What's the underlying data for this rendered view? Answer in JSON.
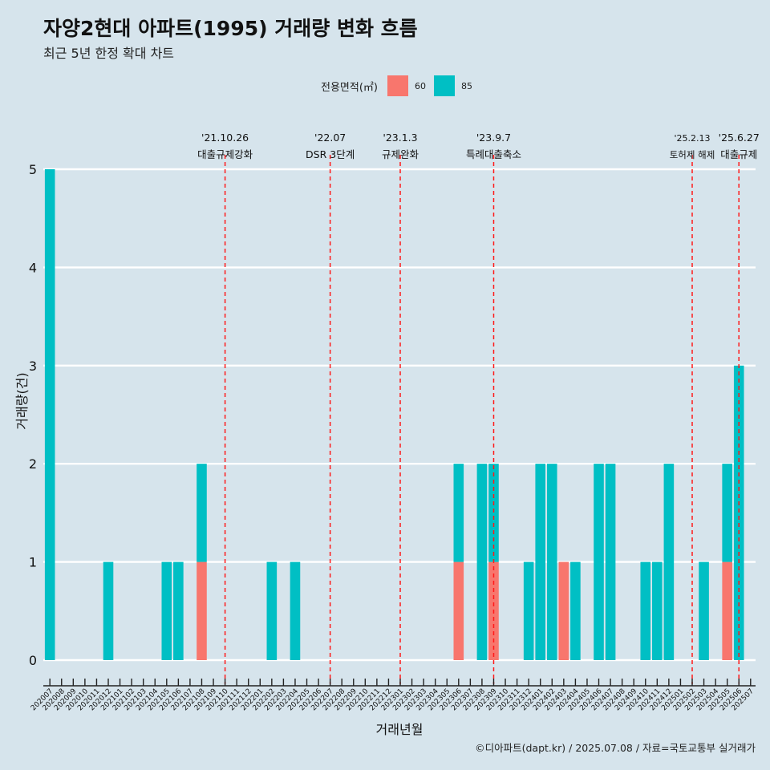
{
  "title": "자양2현대 아파트(1995) 거래량 변화 흐름",
  "subtitle": "최근 5년 한정 확대 차트",
  "caption": "©디아파트(dapt.kr) / 2025.07.08 / 자료=국토교통부 실거래가",
  "legend": {
    "title": "전용면적(㎡)",
    "items": [
      {
        "label": "60",
        "color": "#f8766d"
      },
      {
        "label": "85",
        "color": "#00bfc4"
      }
    ]
  },
  "chart_data": {
    "type": "bar",
    "xlabel": "거래년월",
    "ylabel": "거래량(건)",
    "ylim": [
      0,
      5
    ],
    "y_ticks": [
      0,
      1,
      2,
      3,
      4,
      5
    ],
    "grid": true,
    "legend_position": "top",
    "categories": [
      "202007",
      "202008",
      "202009",
      "202010",
      "202011",
      "202012",
      "202101",
      "202102",
      "202103",
      "202104",
      "202105",
      "202106",
      "202107",
      "202108",
      "202109",
      "202110",
      "202111",
      "202112",
      "202201",
      "202202",
      "202203",
      "202204",
      "202205",
      "202206",
      "202207",
      "202208",
      "202209",
      "202210",
      "202211",
      "202212",
      "202301",
      "202302",
      "202303",
      "202304",
      "202305",
      "202306",
      "202307",
      "202308",
      "202309",
      "202310",
      "202311",
      "202312",
      "202401",
      "202402",
      "202403",
      "202404",
      "202405",
      "202406",
      "202407",
      "202408",
      "202409",
      "202410",
      "202411",
      "202412",
      "202501",
      "202502",
      "202503",
      "202504",
      "202505",
      "202506",
      "202507"
    ],
    "series": [
      {
        "name": "60",
        "color": "#f8766d",
        "values": [
          0,
          0,
          0,
          0,
          0,
          0,
          0,
          0,
          0,
          0,
          0,
          0,
          0,
          1,
          0,
          0,
          0,
          0,
          0,
          0,
          0,
          0,
          0,
          0,
          0,
          0,
          0,
          0,
          0,
          0,
          0,
          0,
          0,
          0,
          0,
          1,
          0,
          0,
          1,
          0,
          0,
          0,
          0,
          0,
          1,
          0,
          0,
          0,
          0,
          0,
          0,
          0,
          0,
          0,
          0,
          0,
          0,
          0,
          1,
          0,
          0
        ]
      },
      {
        "name": "85",
        "color": "#00bfc4",
        "values": [
          5,
          0,
          0,
          0,
          0,
          1,
          0,
          0,
          0,
          0,
          1,
          1,
          0,
          1,
          0,
          0,
          0,
          0,
          0,
          1,
          0,
          1,
          0,
          0,
          0,
          0,
          0,
          0,
          0,
          0,
          0,
          0,
          0,
          0,
          0,
          1,
          0,
          2,
          1,
          0,
          0,
          1,
          2,
          2,
          0,
          1,
          0,
          2,
          2,
          0,
          0,
          1,
          1,
          2,
          0,
          0,
          1,
          0,
          1,
          3,
          0
        ]
      }
    ],
    "annotations": [
      {
        "date": "'21.10.26",
        "text": "대출규제강화",
        "x": "202110"
      },
      {
        "date": "'22.07",
        "text": "DSR 3단계",
        "x": "202207"
      },
      {
        "date": "'23.1.3",
        "text": "규제완화",
        "x": "202301"
      },
      {
        "date": "'23.9.7",
        "text": "특례대출축소",
        "x": "202309"
      },
      {
        "date": "'25.2.13",
        "text": "토허제 해제",
        "x": "202502"
      },
      {
        "date": "'25.6.27",
        "text": "대출규제",
        "x": "202506"
      }
    ]
  }
}
